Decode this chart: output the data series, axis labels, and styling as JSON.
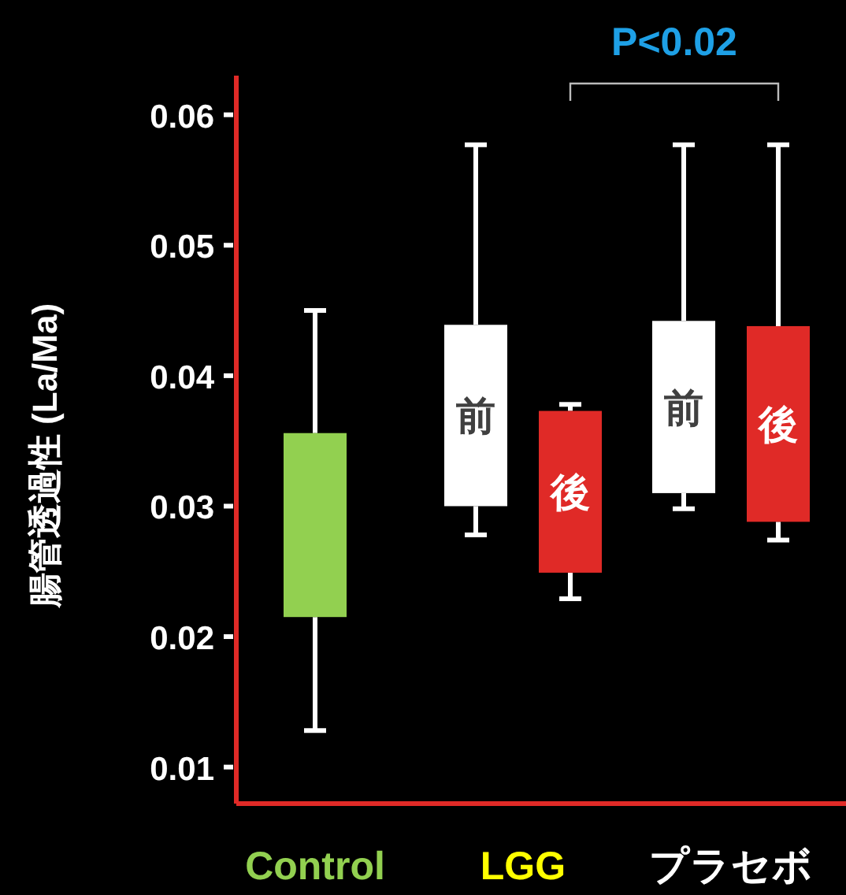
{
  "chart_data": {
    "type": "box",
    "ylabel": "腸管透過性 (La/Ma)",
    "categories": [
      "Control",
      "LGG",
      "プラセボ"
    ],
    "ylim": [
      0.0072,
      0.063
    ],
    "yticks": [
      0.01,
      0.02,
      0.03,
      0.04,
      0.05,
      0.06
    ],
    "grid": false,
    "series": [
      {
        "color": "#92d050",
        "boxes": [
          {
            "low": 0.0128,
            "q1": 0.0215,
            "q3": 0.0356,
            "high": 0.045
          },
          null,
          null
        ]
      },
      {
        "name": "前",
        "color": "#ffffff",
        "boxes": [
          null,
          {
            "low": 0.0278,
            "q1": 0.03,
            "q3": 0.0439,
            "high": 0.0577
          },
          {
            "low": 0.0298,
            "q1": 0.031,
            "q3": 0.0442,
            "high": 0.0577
          }
        ]
      },
      {
        "name": "後",
        "color": "#e02a27",
        "boxes": [
          null,
          {
            "low": 0.0229,
            "q1": 0.0249,
            "q3": 0.0373,
            "high": 0.0378
          },
          {
            "low": 0.0274,
            "q1": 0.0288,
            "q3": 0.0438,
            "high": 0.0577
          }
        ]
      }
    ],
    "annotations": [
      "P<0.02"
    ]
  }
}
